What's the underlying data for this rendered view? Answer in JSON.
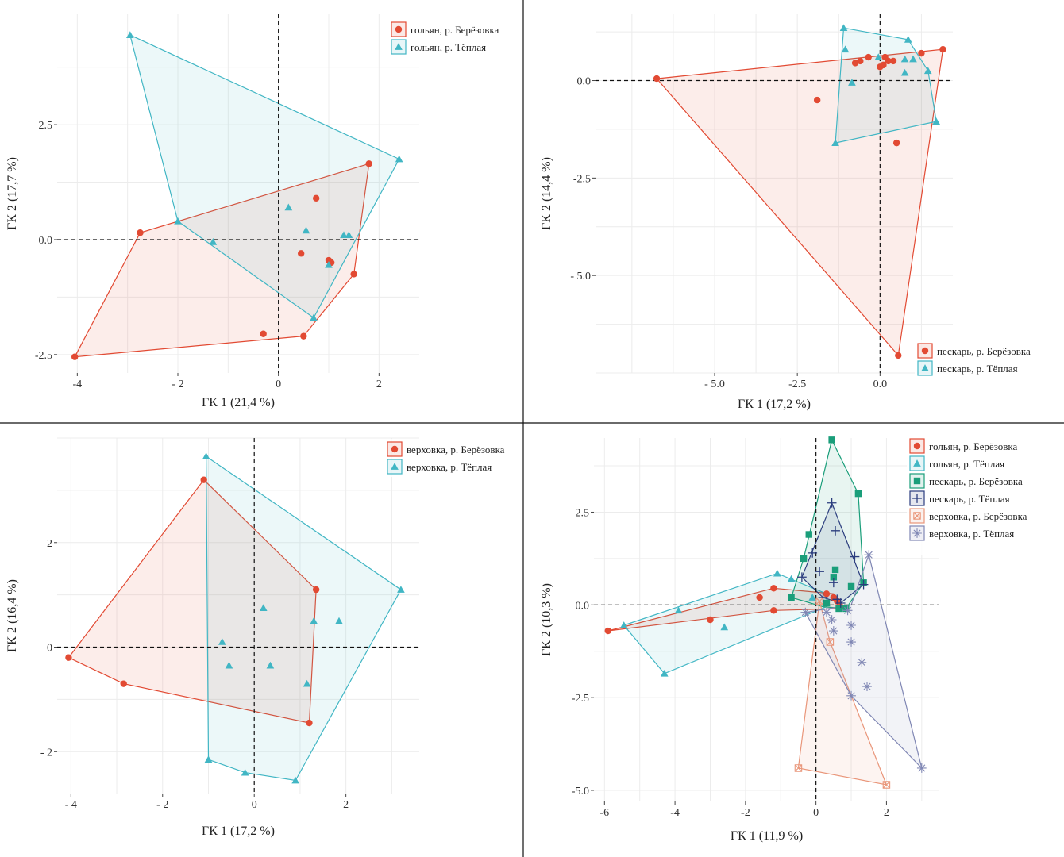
{
  "chart_data": [
    {
      "type": "scatter",
      "subtype": "convex-hull ordination",
      "xlabel": "ГК 1 (21,4 %)",
      "ylabel": "ГК 2 (17,7 %)",
      "xlim": [
        -4.4,
        2.8
      ],
      "ylim": [
        -2.9,
        4.9
      ],
      "xticks": [
        -4,
        -2,
        0,
        2
      ],
      "xtick_labels": [
        "-4",
        "- 2",
        "0",
        "2"
      ],
      "yticks": [
        -2.5,
        0,
        2.5
      ],
      "ytick_labels": [
        "-2.5",
        "0.0",
        "2.5"
      ],
      "grid": true,
      "reference_lines": {
        "x": 0,
        "y": 0
      },
      "legend_position": "top-right",
      "series": [
        {
          "name": "гольян, р. Берёзовка",
          "marker": "circle",
          "color": "#e24a33",
          "points": [
            [
              -4.05,
              -2.55
            ],
            [
              -2.75,
              0.15
            ],
            [
              -0.3,
              -2.05
            ],
            [
              0.5,
              -2.1
            ],
            [
              0.75,
              0.9
            ],
            [
              0.45,
              -0.3
            ],
            [
              1.05,
              -0.5
            ],
            [
              1.5,
              -0.75
            ],
            [
              1.8,
              1.65
            ],
            [
              1.0,
              -0.45
            ]
          ],
          "hull": [
            [
              -4.05,
              -2.55
            ],
            [
              -2.75,
              0.15
            ],
            [
              1.8,
              1.65
            ],
            [
              1.5,
              -0.75
            ],
            [
              0.5,
              -2.1
            ]
          ]
        },
        {
          "name": "гольян, р. Тёплая",
          "marker": "triangle",
          "color": "#41b6c4",
          "points": [
            [
              -2.95,
              4.45
            ],
            [
              2.4,
              1.75
            ],
            [
              -2.0,
              0.4
            ],
            [
              -1.3,
              -0.05
            ],
            [
              0.2,
              0.7
            ],
            [
              0.55,
              0.2
            ],
            [
              1.3,
              0.1
            ],
            [
              1.4,
              0.1
            ],
            [
              1.0,
              -0.55
            ],
            [
              0.7,
              -1.7
            ]
          ],
          "hull": [
            [
              -2.95,
              4.45
            ],
            [
              2.4,
              1.75
            ],
            [
              0.7,
              -1.7
            ],
            [
              -2.0,
              0.4
            ]
          ]
        }
      ]
    },
    {
      "type": "scatter",
      "subtype": "convex-hull ordination",
      "xlabel": "ГК 1 (17,2 %)",
      "ylabel": "ГК 2 (14,4 %)",
      "xlim": [
        -8.6,
        2.2
      ],
      "ylim": [
        -7.5,
        1.7
      ],
      "xticks": [
        -5,
        -2.5,
        0
      ],
      "xtick_labels": [
        "- 5.0",
        "-2.5",
        "0.0"
      ],
      "yticks": [
        -5,
        -2.5,
        0
      ],
      "ytick_labels": [
        "- 5.0",
        "-2.5",
        "0.0"
      ],
      "grid": true,
      "reference_lines": {
        "x": 0,
        "y": 0
      },
      "legend_position": "bottom-right",
      "series": [
        {
          "name": "пескарь, р. Берёзовка",
          "marker": "circle",
          "color": "#e24a33",
          "points": [
            [
              -6.75,
              0.05
            ],
            [
              1.9,
              0.8
            ],
            [
              0.55,
              -7.05
            ],
            [
              -1.9,
              -0.5
            ],
            [
              0.5,
              -1.6
            ],
            [
              -0.6,
              0.5
            ],
            [
              -0.75,
              0.45
            ],
            [
              -0.35,
              0.6
            ],
            [
              0.15,
              0.6
            ],
            [
              0.25,
              0.5
            ],
            [
              0.4,
              0.5
            ],
            [
              1.25,
              0.7
            ],
            [
              0.0,
              0.35
            ],
            [
              0.1,
              0.4
            ]
          ],
          "hull": [
            [
              -6.75,
              0.05
            ],
            [
              1.9,
              0.8
            ],
            [
              0.55,
              -7.05
            ]
          ]
        },
        {
          "name": "пескарь, р. Тёплая",
          "marker": "triangle",
          "color": "#41b6c4",
          "points": [
            [
              -1.1,
              1.35
            ],
            [
              0.85,
              1.05
            ],
            [
              -1.05,
              0.8
            ],
            [
              1.45,
              0.25
            ],
            [
              1.7,
              -1.05
            ],
            [
              -1.35,
              -1.6
            ],
            [
              -0.85,
              -0.05
            ],
            [
              0.75,
              0.2
            ],
            [
              1.0,
              0.55
            ],
            [
              0.75,
              0.55
            ],
            [
              -0.05,
              0.6
            ]
          ],
          "hull": [
            [
              -1.1,
              1.35
            ],
            [
              0.85,
              1.05
            ],
            [
              1.45,
              0.25
            ],
            [
              1.7,
              -1.05
            ],
            [
              -1.35,
              -1.6
            ]
          ]
        }
      ]
    },
    {
      "type": "scatter",
      "subtype": "convex-hull ordination",
      "xlabel": "ГК 1 (17,2 %)",
      "ylabel": "ГК 2 (16,4 %)",
      "xlim": [
        -4.3,
        3.6
      ],
      "ylim": [
        -2.8,
        4.0
      ],
      "xticks": [
        -4,
        -2,
        0,
        2
      ],
      "xtick_labels": [
        "- 4",
        "- 2",
        "0",
        "2"
      ],
      "yticks": [
        -2,
        0,
        2
      ],
      "ytick_labels": [
        "- 2",
        "0",
        "2"
      ],
      "grid": true,
      "reference_lines": {
        "x": 0,
        "y": 0
      },
      "legend_position": "top-right",
      "series": [
        {
          "name": "верховка, р. Берёзовка",
          "marker": "circle",
          "color": "#e24a33",
          "points": [
            [
              -4.05,
              -0.2
            ],
            [
              -2.85,
              -0.7
            ],
            [
              -1.1,
              3.2
            ],
            [
              1.35,
              1.1
            ],
            [
              1.2,
              -1.45
            ]
          ],
          "hull": [
            [
              -4.05,
              -0.2
            ],
            [
              -1.1,
              3.2
            ],
            [
              1.35,
              1.1
            ],
            [
              1.2,
              -1.45
            ],
            [
              -2.85,
              -0.7
            ]
          ]
        },
        {
          "name": "верховка, р. Тёплая",
          "marker": "triangle",
          "color": "#41b6c4",
          "points": [
            [
              -1.05,
              3.65
            ],
            [
              3.2,
              1.1
            ],
            [
              0.9,
              -2.55
            ],
            [
              -0.2,
              -2.4
            ],
            [
              -1.0,
              -2.15
            ],
            [
              0.2,
              0.75
            ],
            [
              1.3,
              0.5
            ],
            [
              1.85,
              0.5
            ],
            [
              -0.7,
              0.1
            ],
            [
              -0.55,
              -0.35
            ],
            [
              0.35,
              -0.35
            ],
            [
              1.15,
              -0.7
            ]
          ],
          "hull": [
            [
              -1.05,
              3.65
            ],
            [
              3.2,
              1.1
            ],
            [
              0.9,
              -2.55
            ],
            [
              -0.2,
              -2.4
            ],
            [
              -1.0,
              -2.15
            ]
          ]
        }
      ]
    },
    {
      "type": "scatter",
      "subtype": "convex-hull ordination",
      "xlabel": "ГК 1 (11,9 %)",
      "ylabel": "ГК 2 (10,3 %)",
      "xlim": [
        -6.3,
        3.5
      ],
      "ylim": [
        -5.3,
        4.5
      ],
      "xticks": [
        -6,
        -4,
        -2,
        0,
        2
      ],
      "xtick_labels": [
        "-6",
        "-4",
        "-2",
        "0",
        "2"
      ],
      "yticks": [
        -5,
        -2.5,
        0,
        2.5
      ],
      "ytick_labels": [
        "-5.0",
        "-2.5",
        "0.0",
        "2.5"
      ],
      "grid": true,
      "reference_lines": {
        "x": 0,
        "y": 0
      },
      "legend_position": "top-right",
      "series": [
        {
          "name": "гольян, р. Берёзовка",
          "marker": "circle",
          "color": "#e24a33",
          "points": [
            [
              -5.9,
              -0.7
            ],
            [
              -3.0,
              -0.4
            ],
            [
              -1.6,
              0.2
            ],
            [
              -1.2,
              0.45
            ],
            [
              -1.2,
              -0.15
            ],
            [
              0.3,
              0.3
            ],
            [
              0.5,
              0.2
            ],
            [
              0.6,
              0.1
            ],
            [
              0.7,
              -0.05
            ]
          ],
          "hull": [
            [
              -5.9,
              -0.7
            ],
            [
              -1.2,
              0.45
            ],
            [
              0.5,
              0.3
            ],
            [
              0.75,
              -0.1
            ],
            [
              -1.2,
              -0.15
            ]
          ]
        },
        {
          "name": "гольян, р. Тёплая",
          "marker": "triangle",
          "color": "#41b6c4",
          "points": [
            [
              -5.45,
              -0.55
            ],
            [
              -4.3,
              -1.85
            ],
            [
              -3.9,
              -0.15
            ],
            [
              -2.6,
              -0.6
            ],
            [
              -1.1,
              0.85
            ],
            [
              -0.7,
              0.7
            ],
            [
              -0.1,
              0.2
            ],
            [
              0.3,
              0.05
            ]
          ],
          "hull": [
            [
              -5.45,
              -0.55
            ],
            [
              -1.1,
              0.85
            ],
            [
              0.3,
              0.3
            ],
            [
              0.3,
              -0.05
            ],
            [
              -4.3,
              -1.85
            ]
          ]
        },
        {
          "name": "пескарь, р. Берёзовка",
          "marker": "square",
          "color": "#1a9e7a",
          "points": [
            [
              0.45,
              4.45
            ],
            [
              1.2,
              3.0
            ],
            [
              -0.2,
              1.9
            ],
            [
              -0.35,
              1.25
            ],
            [
              0.55,
              0.95
            ],
            [
              0.5,
              0.75
            ],
            [
              1.0,
              0.5
            ],
            [
              1.35,
              0.6
            ],
            [
              -0.7,
              0.2
            ],
            [
              0.3,
              0.05
            ],
            [
              0.85,
              -0.1
            ],
            [
              0.65,
              -0.1
            ]
          ],
          "hull": [
            [
              0.45,
              4.45
            ],
            [
              1.2,
              3.0
            ],
            [
              1.35,
              0.6
            ],
            [
              0.85,
              -0.1
            ],
            [
              0.2,
              -0.05
            ],
            [
              -0.7,
              0.2
            ],
            [
              -0.35,
              1.25
            ]
          ]
        },
        {
          "name": "пескарь, р. Тёплая",
          "marker": "plus",
          "color": "#2b3d7e",
          "points": [
            [
              0.45,
              2.75
            ],
            [
              0.55,
              2.0
            ],
            [
              -0.1,
              1.4
            ],
            [
              0.1,
              0.9
            ],
            [
              1.1,
              1.3
            ],
            [
              -0.4,
              0.75
            ],
            [
              0.5,
              0.6
            ],
            [
              0.2,
              0.2
            ],
            [
              0.6,
              0.15
            ],
            [
              1.35,
              0.55
            ],
            [
              0.7,
              0.05
            ]
          ],
          "hull": [
            [
              0.45,
              2.75
            ],
            [
              1.35,
              0.55
            ],
            [
              0.7,
              0.05
            ],
            [
              0.2,
              0.2
            ],
            [
              -0.4,
              0.75
            ]
          ]
        },
        {
          "name": "верховка, р. Берёзовка",
          "marker": "square-x",
          "color": "#e9967a",
          "points": [
            [
              -0.5,
              -4.4
            ],
            [
              2.0,
              -4.85
            ],
            [
              0.4,
              -1.0
            ],
            [
              0.1,
              0.1
            ]
          ],
          "hull": [
            [
              -0.5,
              -4.4
            ],
            [
              0.1,
              0.1
            ],
            [
              0.4,
              -1.0
            ],
            [
              2.0,
              -4.85
            ]
          ]
        },
        {
          "name": "верховка, р. Тёплая",
          "marker": "asterisk",
          "color": "#8087b4",
          "points": [
            [
              1.5,
              1.35
            ],
            [
              3.0,
              -4.4
            ],
            [
              1.0,
              -2.45
            ],
            [
              1.45,
              -2.2
            ],
            [
              1.3,
              -1.55
            ],
            [
              1.0,
              -1.0
            ],
            [
              1.0,
              -0.55
            ],
            [
              0.5,
              -0.7
            ],
            [
              -0.3,
              -0.2
            ],
            [
              0.45,
              -0.4
            ],
            [
              0.9,
              -0.15
            ],
            [
              0.3,
              -0.2
            ]
          ],
          "hull": [
            [
              1.5,
              1.35
            ],
            [
              3.0,
              -4.4
            ],
            [
              1.0,
              -2.45
            ],
            [
              -0.3,
              -0.2
            ],
            [
              1.0,
              0.0
            ]
          ]
        }
      ]
    }
  ]
}
